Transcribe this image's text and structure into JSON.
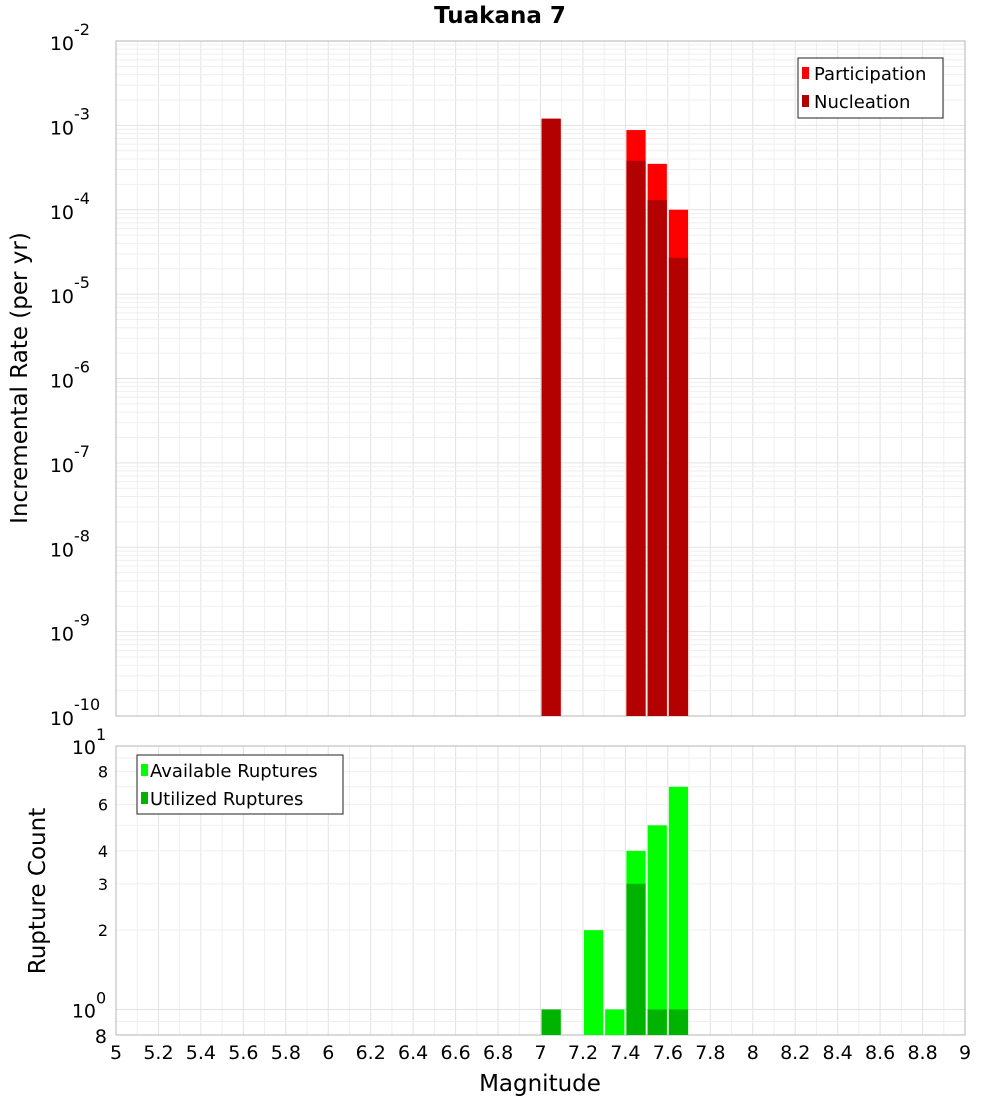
{
  "chart_data": [
    {
      "type": "bar",
      "title": "Tuakana 7",
      "xlabel": "",
      "ylabel": "Incremental Rate (per yr)",
      "xlim": [
        5,
        9
      ],
      "ylim": [
        1e-10,
        0.01
      ],
      "y_scale": "log",
      "grid": true,
      "legend_position": "top-right",
      "bin_width": 0.1,
      "y_tick_bases": [
        "10",
        "10",
        "10",
        "10",
        "10",
        "10",
        "10",
        "10",
        "10"
      ],
      "y_tick_exponents": [
        "-10",
        "-9",
        "-8",
        "-7",
        "-6",
        "-5",
        "-4",
        "-3",
        "-2"
      ],
      "series": [
        {
          "name": "Participation",
          "color": "#ff0000",
          "x": [
            7.05,
            7.45,
            7.55,
            7.65
          ],
          "values": [
            0.0012,
            0.00088,
            0.00035,
            0.0001
          ]
        },
        {
          "name": "Nucleation",
          "color": "#b30000",
          "x": [
            7.05,
            7.45,
            7.55,
            7.65
          ],
          "values": [
            0.0012,
            0.00038,
            0.00013,
            2.7e-05
          ]
        }
      ]
    },
    {
      "type": "bar",
      "title": "",
      "xlabel": "Magnitude",
      "ylabel": "Rupture Count",
      "xlim": [
        5,
        9
      ],
      "ylim": [
        0.8,
        10
      ],
      "y_scale": "log",
      "grid": true,
      "legend_position": "top-left",
      "bin_width": 0.1,
      "x_tick_labels": [
        "5",
        "5.2",
        "5.4",
        "5.6",
        "5.8",
        "6",
        "6.2",
        "6.4",
        "6.6",
        "6.8",
        "7",
        "7.2",
        "7.4",
        "7.6",
        "7.8",
        "8",
        "8.2",
        "8.4",
        "8.6",
        "8.8",
        "9"
      ],
      "y_tick_labels": [
        "2",
        "3",
        "4",
        "6",
        "8"
      ],
      "y_tick_bases": [
        "10",
        "10"
      ],
      "y_tick_exponents": [
        "0",
        "1"
      ],
      "y_bottom_label": "8",
      "series": [
        {
          "name": "Available Ruptures",
          "color": "#00ff00",
          "x": [
            7.05,
            7.25,
            7.35,
            7.45,
            7.55,
            7.65
          ],
          "values": [
            1,
            2,
            1,
            4,
            5,
            7
          ]
        },
        {
          "name": "Utilized Ruptures",
          "color": "#00b300",
          "x": [
            7.05,
            7.25,
            7.35,
            7.45,
            7.55,
            7.65
          ],
          "values": [
            1,
            0,
            0,
            3,
            1,
            1
          ]
        }
      ]
    }
  ]
}
